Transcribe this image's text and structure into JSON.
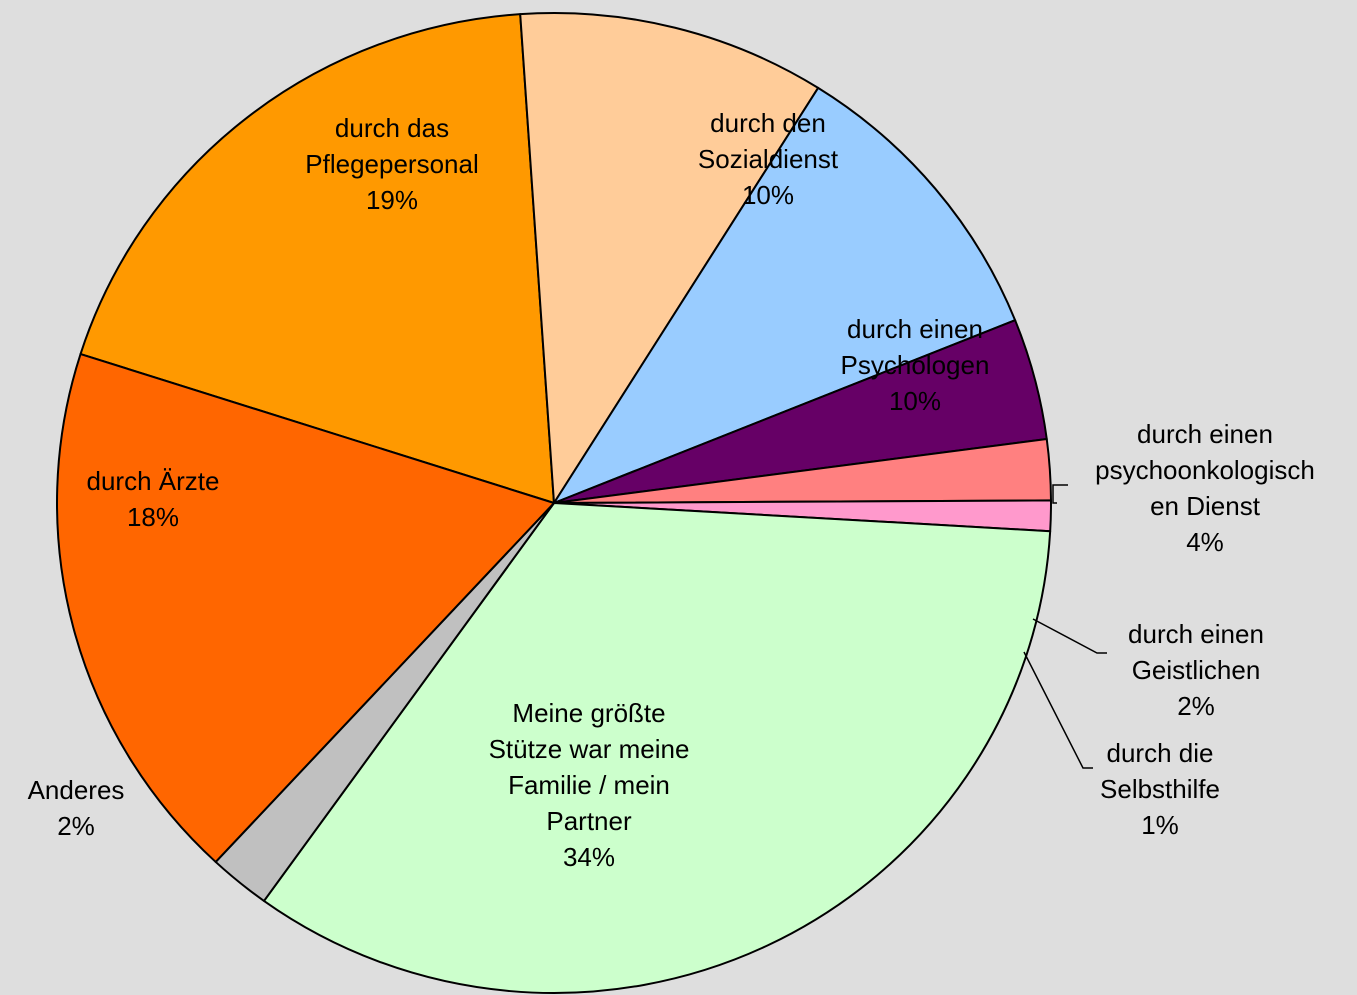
{
  "chart_data": {
    "type": "pie",
    "title": "",
    "colors": {
      "background": "#dedede",
      "edge": "#000000"
    },
    "slices": [
      {
        "lines": [
          "durch das",
          "Pflegepersonal"
        ],
        "pct_label": "19%",
        "value": 19,
        "color": "#ff9900"
      },
      {
        "lines": [
          "durch den",
          "Sozialdienst"
        ],
        "pct_label": "10%",
        "value": 10,
        "color": "#ffcc99"
      },
      {
        "lines": [
          "durch einen",
          "Psychologen"
        ],
        "pct_label": "10%",
        "value": 10,
        "color": "#99ccff"
      },
      {
        "lines": [
          "durch einen",
          "psychoonkologisch",
          "en Dienst"
        ],
        "pct_label": "4%",
        "value": 4,
        "color": "#660066"
      },
      {
        "lines": [
          "durch einen",
          "Geistlichen"
        ],
        "pct_label": "2%",
        "value": 2,
        "color": "#ff8080"
      },
      {
        "lines": [
          "durch die",
          "Selbsthilfe"
        ],
        "pct_label": "1%",
        "value": 1,
        "color": "#ff99cc"
      },
      {
        "lines": [
          "Meine größte",
          "Stütze war meine",
          "Familie / mein",
          "Partner"
        ],
        "pct_label": "34%",
        "value": 34,
        "color": "#ccffcc"
      },
      {
        "lines": [
          "Anderes"
        ],
        "pct_label": "2%",
        "value": 2,
        "color": "#c0c0c0"
      },
      {
        "lines": [
          "durch Ärzte"
        ],
        "pct_label": "18%",
        "value": 18,
        "color": "#ff6600"
      }
    ]
  }
}
